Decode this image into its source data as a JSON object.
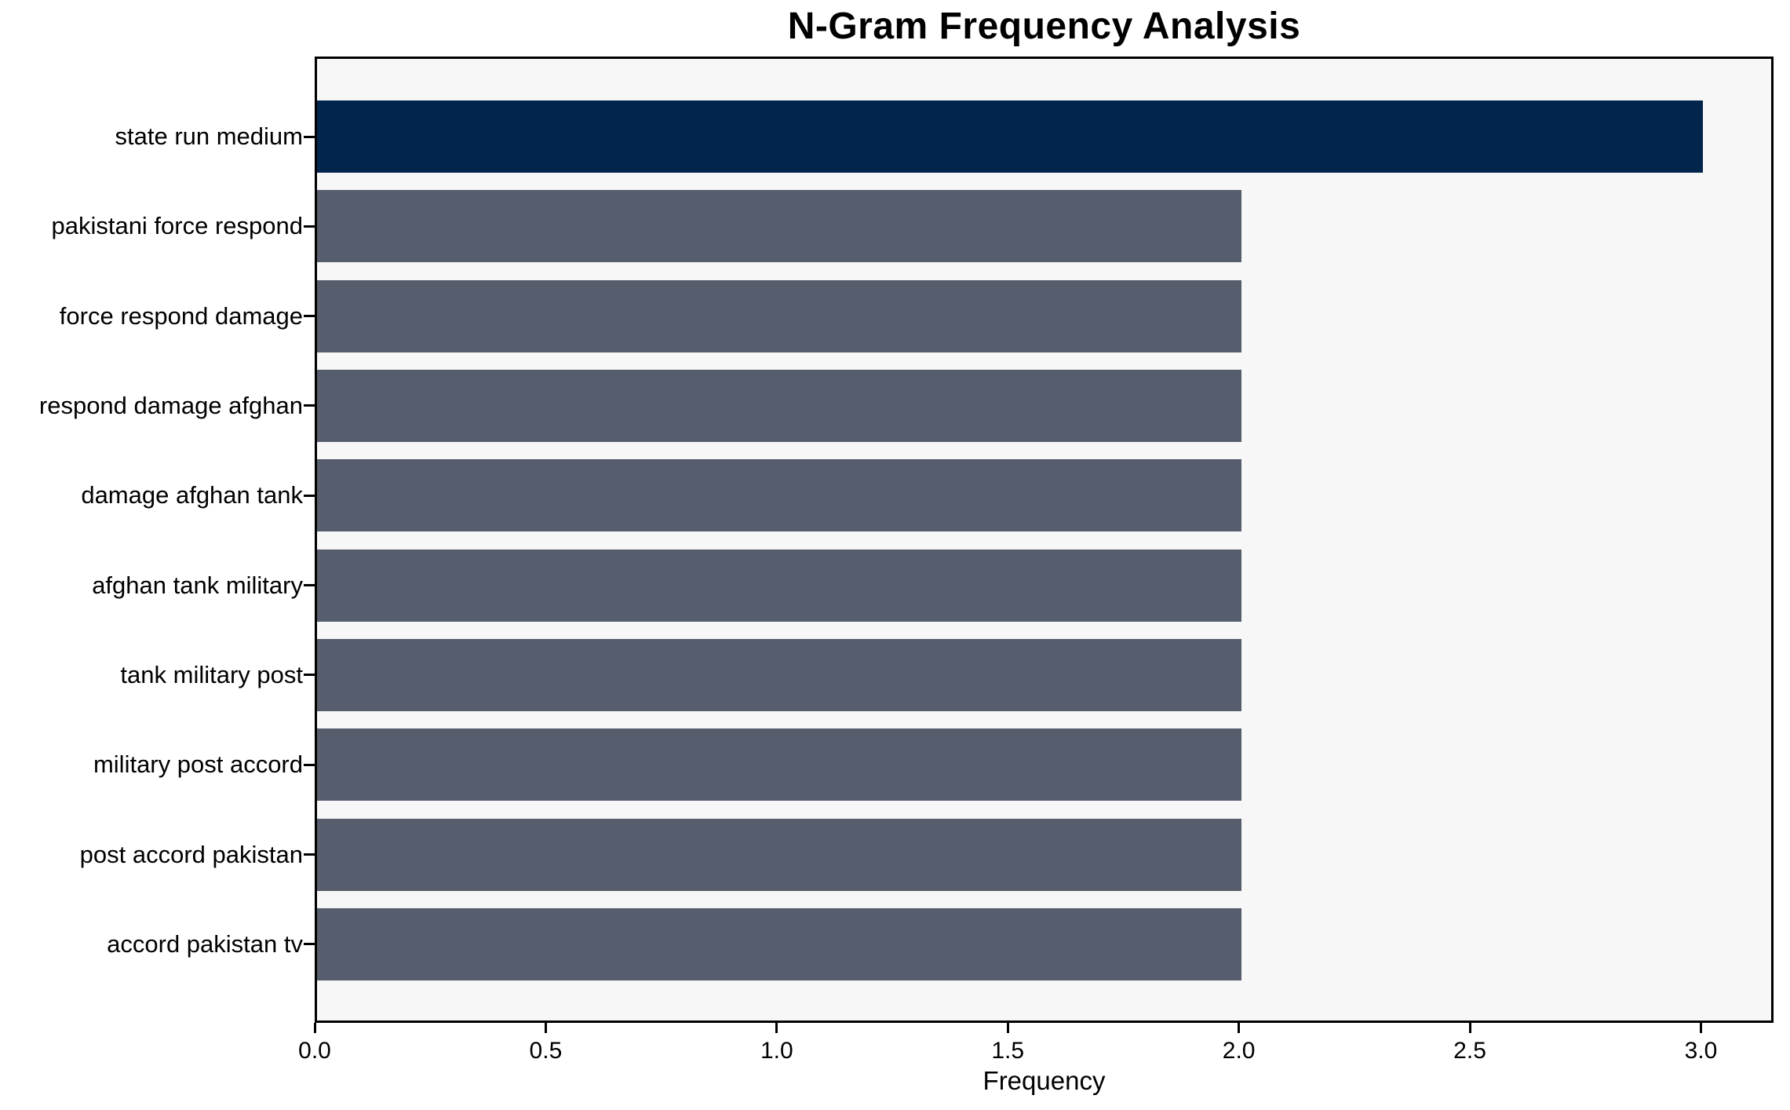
{
  "chart_data": {
    "type": "bar",
    "orientation": "horizontal",
    "title": "N-Gram Frequency Analysis",
    "xlabel": "Frequency",
    "ylabel": "",
    "categories": [
      "state run medium",
      "pakistani force respond",
      "force respond damage",
      "respond damage afghan",
      "damage afghan tank",
      "afghan tank military",
      "tank military post",
      "military post accord",
      "post accord pakistan",
      "accord pakistan tv"
    ],
    "values": [
      3,
      2,
      2,
      2,
      2,
      2,
      2,
      2,
      2,
      2
    ],
    "x_tick_labels": [
      "0.0",
      "0.5",
      "1.0",
      "1.5",
      "2.0",
      "2.5",
      "3.0"
    ],
    "x_tick_values": [
      0,
      0.5,
      1,
      1.5,
      2,
      2.5,
      3
    ],
    "xlim": [
      0,
      3.147
    ],
    "grid": false,
    "legend": false,
    "colors": {
      "highlight_bar": "#02254E",
      "default_bar": "#565D6C",
      "plot_background": "#F7F7F7",
      "figure_background": "#FFFFFF",
      "spine": "#000000",
      "text": "#000000"
    }
  }
}
